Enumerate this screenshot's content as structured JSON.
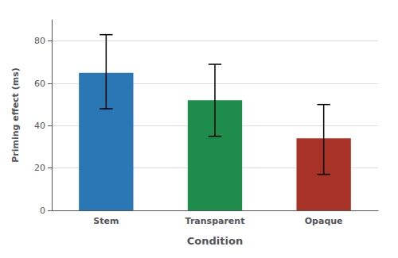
{
  "chart_data": {
    "type": "bar",
    "categories": [
      "Stem",
      "Transparent",
      "Opaque"
    ],
    "values": [
      65,
      52,
      34
    ],
    "errors_upper": [
      18,
      17,
      16
    ],
    "errors_lower": [
      17,
      17,
      17
    ],
    "colors": [
      "#2977b5",
      "#1e8c4a",
      "#a83226"
    ],
    "xlabel": "Condition",
    "ylabel": "Priming effect (ms)",
    "ylim": [
      0,
      90
    ],
    "yticks": [
      0,
      20,
      40,
      60,
      80
    ],
    "grid": true
  }
}
